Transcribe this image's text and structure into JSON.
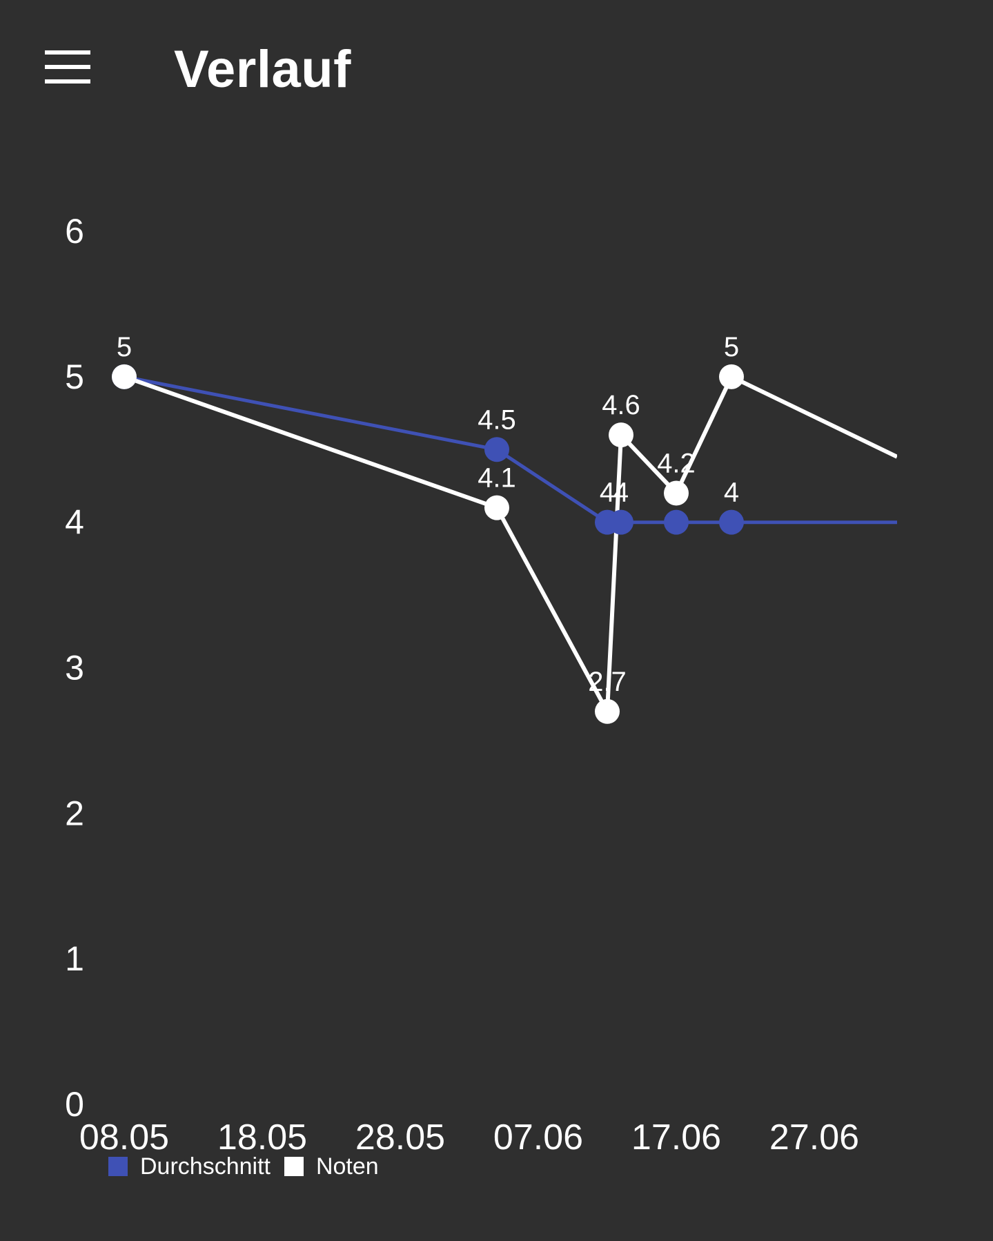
{
  "header": {
    "title": "Verlauf",
    "menu_icon": "hamburger-menu-icon"
  },
  "chart_data": {
    "type": "line",
    "title": "",
    "xlabel": "",
    "ylabel": "",
    "x_ticks": [
      "08.05",
      "18.05",
      "28.05",
      "07.06",
      "17.06",
      "27.06"
    ],
    "x_range": [
      "2023-05-08",
      "2023-07-03"
    ],
    "ylim": [
      0,
      6
    ],
    "y_ticks": [
      "0",
      "1",
      "2",
      "3",
      "4",
      "5",
      "6"
    ],
    "grid": false,
    "legend_position": "bottom-left",
    "series": [
      {
        "name": "Durchschnitt",
        "color": "#3f51b5",
        "points": [
          {
            "x": "2023-05-08",
            "y": 5,
            "label": ""
          },
          {
            "x": "2023-06-04",
            "y": 4.5,
            "label": "4.5"
          },
          {
            "x": "2023-06-12",
            "y": 4,
            "label": "4"
          },
          {
            "x": "2023-06-13",
            "y": 4,
            "label": "4"
          },
          {
            "x": "2023-06-17",
            "y": 4,
            "label": ""
          },
          {
            "x": "2023-06-21",
            "y": 4,
            "label": "4"
          },
          {
            "x": "2023-07-03",
            "y": 4,
            "label": ""
          }
        ]
      },
      {
        "name": "Noten",
        "color": "#ffffff",
        "points": [
          {
            "x": "2023-05-08",
            "y": 5,
            "label": "5"
          },
          {
            "x": "2023-06-04",
            "y": 4.1,
            "label": "4.1"
          },
          {
            "x": "2023-06-12",
            "y": 2.7,
            "label": "2.7"
          },
          {
            "x": "2023-06-13",
            "y": 4.6,
            "label": "4.6"
          },
          {
            "x": "2023-06-17",
            "y": 4.2,
            "label": "4.2"
          },
          {
            "x": "2023-06-21",
            "y": 5,
            "label": "5"
          },
          {
            "x": "2023-07-03",
            "y": 4.45,
            "label": ""
          }
        ]
      }
    ]
  }
}
